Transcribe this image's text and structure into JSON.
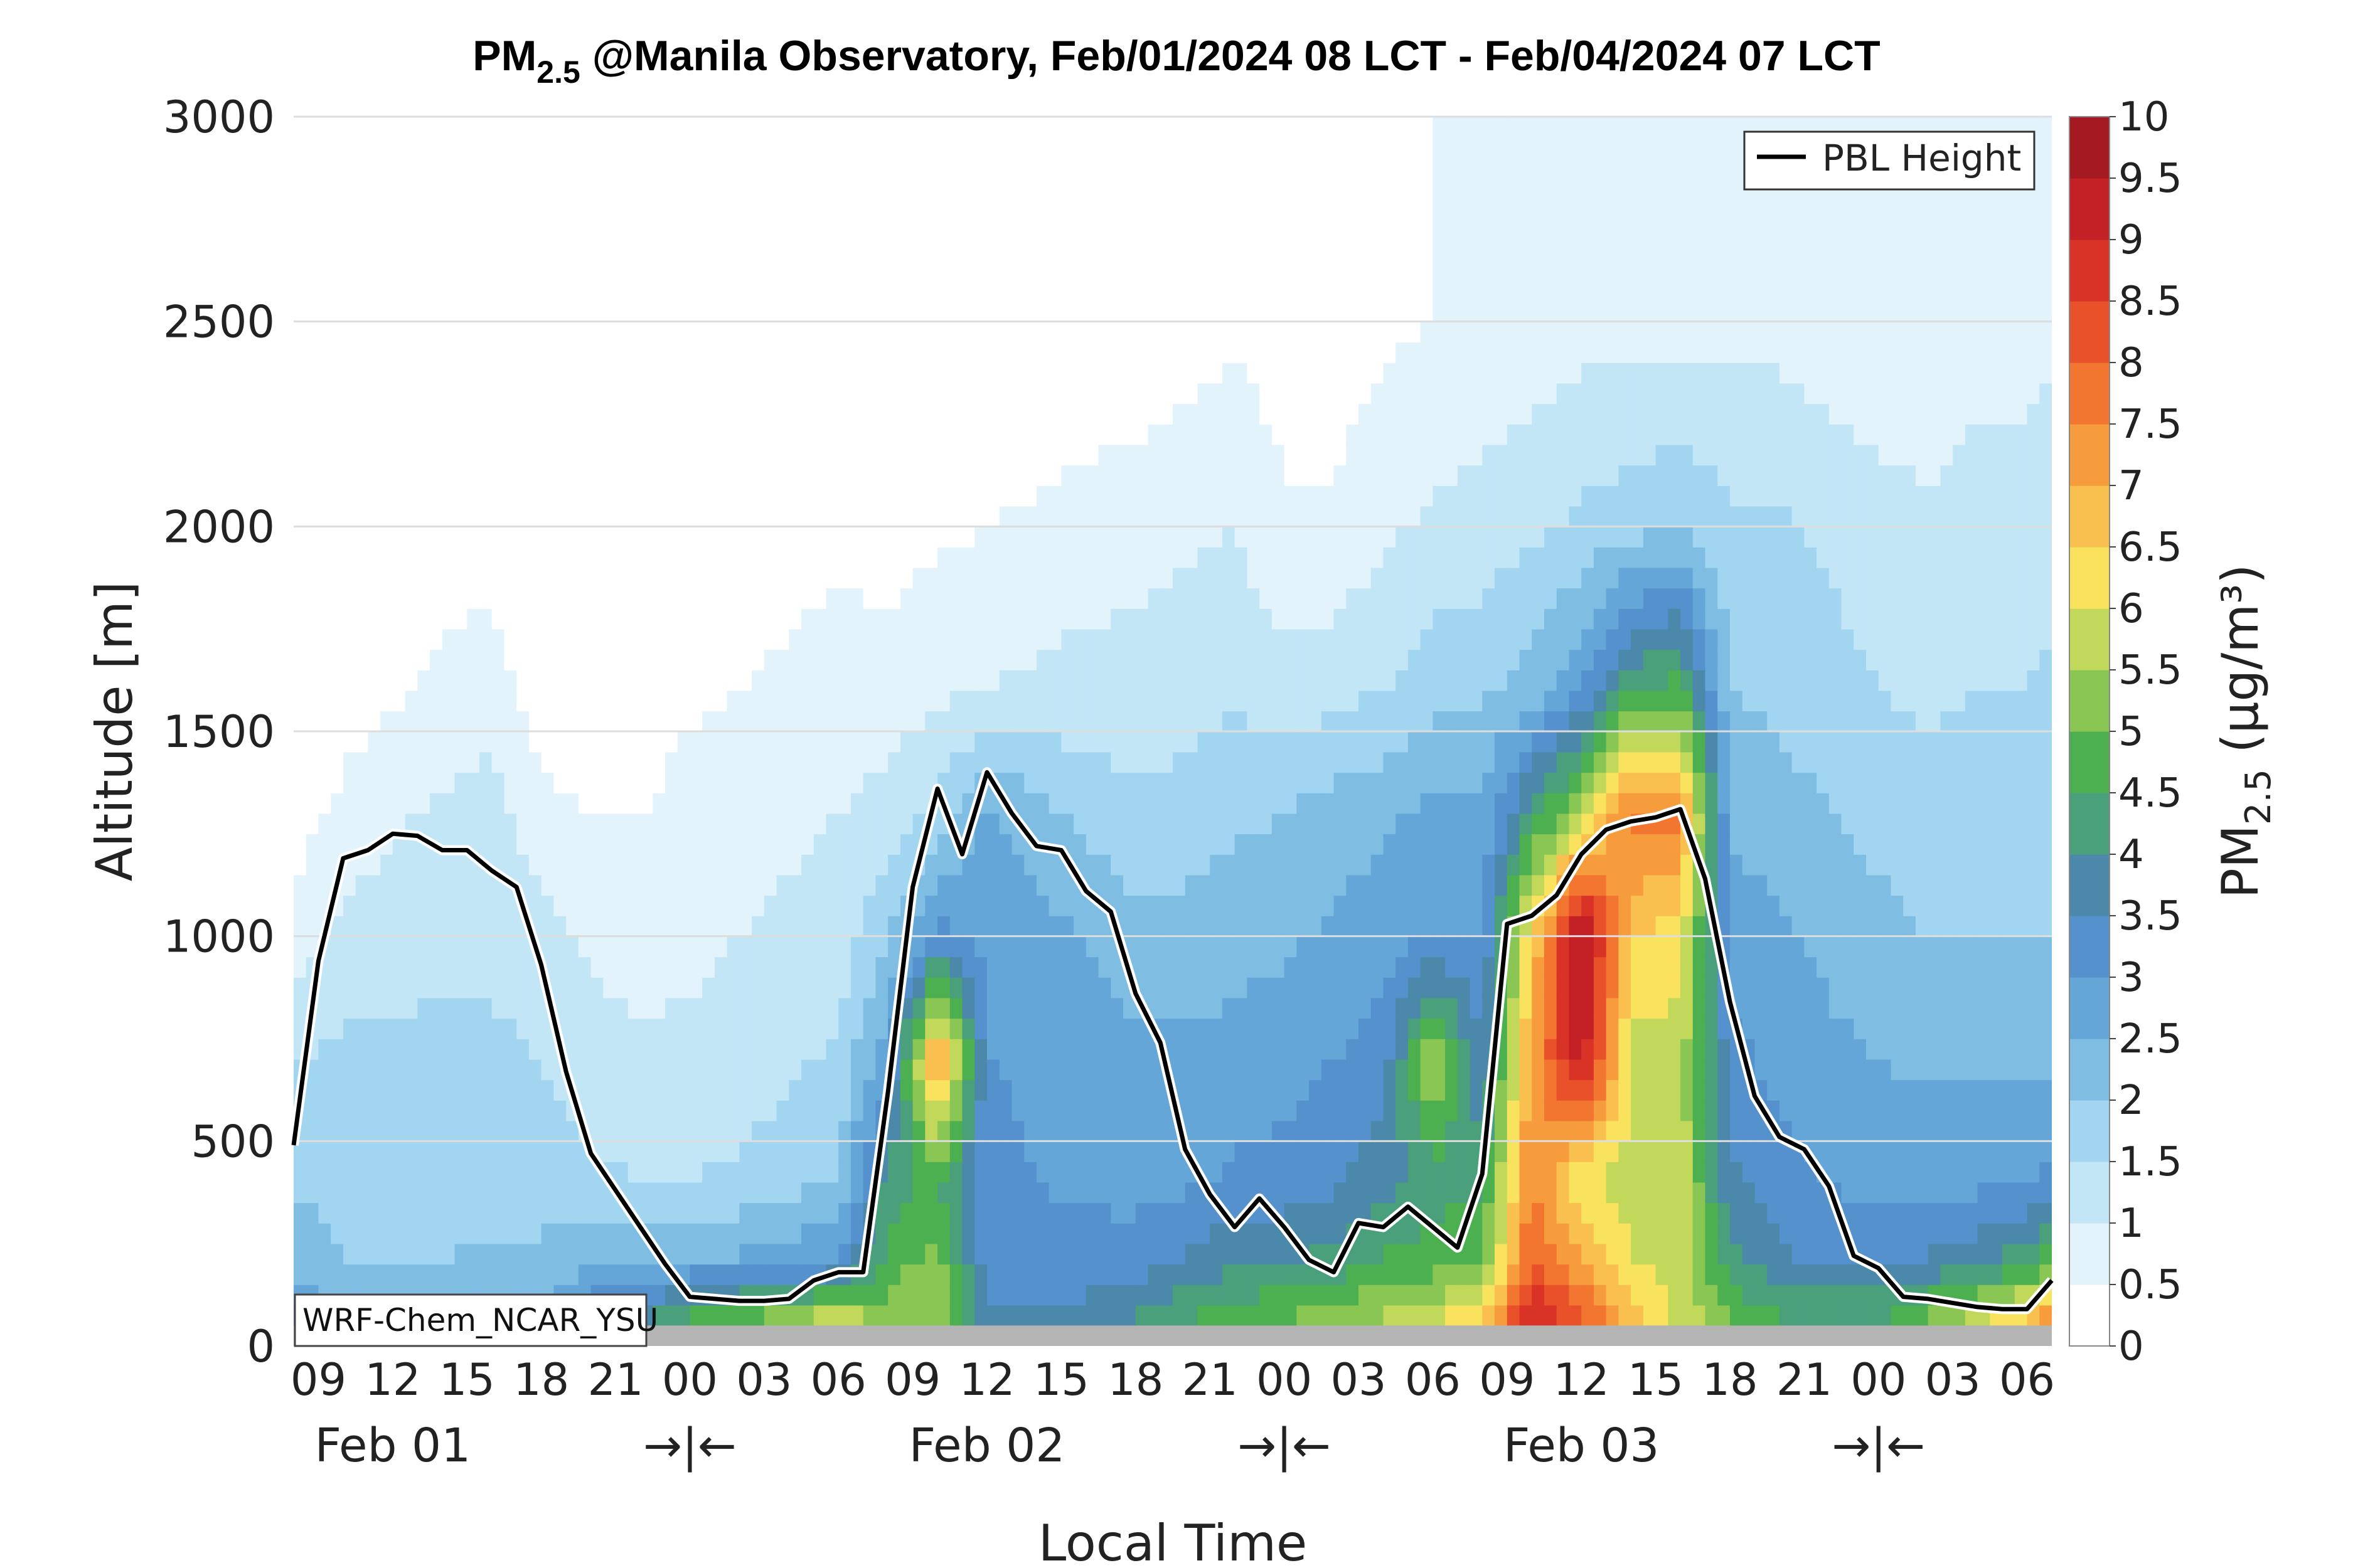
{
  "chart_data": {
    "type": "area",
    "title": {
      "prefix": "PM",
      "subscript": "2.5",
      "suffix": " @Manila Observatory, Feb/01/2024 08 LCT - Feb/04/2024 07 LCT"
    },
    "xlabel": "Local Time",
    "ylabel": "Altitude [m]",
    "ylim": [
      0,
      3000
    ],
    "y_ticks": [
      0,
      500,
      1000,
      1500,
      2000,
      2500,
      3000
    ],
    "x_hours_start": 8,
    "x_range_hours": [
      8,
      79
    ],
    "x_tick_hours": [
      9,
      12,
      15,
      18,
      21,
      24,
      27,
      30,
      33,
      36,
      39,
      42,
      45,
      48,
      51,
      54,
      57,
      60,
      63,
      66,
      69,
      72,
      75,
      78
    ],
    "x_tick_labels": [
      "09",
      "12",
      "15",
      "18",
      "21",
      "00",
      "03",
      "06",
      "09",
      "12",
      "15",
      "18",
      "21",
      "00",
      "03",
      "06",
      "09",
      "12",
      "15",
      "18",
      "21",
      "00",
      "03",
      "06"
    ],
    "day_labels": [
      {
        "text": "Feb 01",
        "hour": 12
      },
      {
        "text": "→|←",
        "hour": 24
      },
      {
        "text": "Feb 02",
        "hour": 36
      },
      {
        "text": "→|←",
        "hour": 48
      },
      {
        "text": "Feb 03",
        "hour": 60
      },
      {
        "text": "→|←",
        "hour": 72
      }
    ],
    "grid": "horizontal dotted",
    "colorbar": {
      "label_prefix": "PM",
      "label_subscript": "2.5",
      "label_unit": " (μg/m³)",
      "levels": [
        0,
        0.5,
        1,
        1.5,
        2,
        2.5,
        3,
        3.5,
        4,
        4.5,
        5,
        5.5,
        6,
        6.5,
        7,
        7.5,
        8,
        8.5,
        9,
        9.5,
        10
      ],
      "tick_labels": [
        "0",
        "0.5",
        "1",
        "1.5",
        "2",
        "2.5",
        "3",
        "3.5",
        "4",
        "4.5",
        "5",
        "5.5",
        "6",
        "6.5",
        "7",
        "7.5",
        "8",
        "8.5",
        "9",
        "9.5",
        "10"
      ],
      "colors": [
        "#ffffff",
        "#e2f3fb",
        "#c3e6f7",
        "#a2d6f0",
        "#7fbde3",
        "#64a6d8",
        "#5591cc",
        "#4b88aa",
        "#4ba07c",
        "#4cb050",
        "#89c653",
        "#c2d85a",
        "#f9e35e",
        "#f9c04f",
        "#f79c3d",
        "#f27530",
        "#e8512a",
        "#d93328",
        "#c32126",
        "#a51a22",
        "#841518"
      ]
    },
    "legend": {
      "label": "PBL Height",
      "placement": "top-right"
    },
    "annotation": "WRF-Chem_NCAR_YSU",
    "ground_level_m": 50,
    "pbl_height": {
      "hours": [
        8,
        9,
        10,
        11,
        12,
        13,
        14,
        15,
        16,
        17,
        18,
        19,
        20,
        21,
        22,
        23,
        24,
        25,
        26,
        27,
        28,
        29,
        30,
        31,
        32,
        33,
        34,
        35,
        36,
        37,
        38,
        39,
        40,
        41,
        42,
        43,
        44,
        45,
        46,
        47,
        48,
        49,
        50,
        51,
        52,
        53,
        54,
        55,
        56,
        57,
        58,
        59,
        60,
        61,
        62,
        63,
        64,
        65,
        66,
        67,
        68,
        69,
        70,
        71,
        72,
        73,
        74,
        75,
        76,
        77,
        78,
        79
      ],
      "values": [
        490,
        940,
        1190,
        1210,
        1250,
        1245,
        1210,
        1210,
        1160,
        1120,
        930,
        670,
        470,
        380,
        290,
        200,
        120,
        115,
        110,
        110,
        115,
        160,
        180,
        180,
        620,
        1120,
        1360,
        1200,
        1400,
        1300,
        1220,
        1210,
        1110,
        1060,
        860,
        740,
        480,
        370,
        290,
        360,
        290,
        210,
        180,
        300,
        290,
        340,
        290,
        240,
        420,
        1030,
        1050,
        1100,
        1200,
        1260,
        1280,
        1290,
        1310,
        1140,
        840,
        610,
        510,
        480,
        390,
        220,
        190,
        120,
        115,
        105,
        95,
        90,
        90,
        160
      ]
    },
    "concentration_field": {
      "description_of_levels_m": [
        0,
        100,
        200,
        400,
        700,
        1000,
        1300,
        1600,
        2000,
        2500
      ],
      "hours": [
        8,
        10,
        12,
        14,
        16,
        18,
        20,
        22,
        24,
        26,
        28,
        30,
        32,
        34,
        36,
        38,
        40,
        42,
        44,
        46,
        48,
        50,
        52,
        54,
        56,
        58,
        60,
        62,
        64,
        66,
        68,
        70,
        72,
        74,
        76,
        78,
        79
      ],
      "profiles_ug_m3": [
        [
          4.0,
          3.0,
          2.2,
          2.0,
          1.5,
          0.6,
          0.3,
          0.2,
          0.5,
          0.3
        ],
        [
          2.0,
          2.0,
          2.0,
          1.8,
          1.6,
          1.2,
          0.6,
          0.3,
          0.5,
          0.3
        ],
        [
          2.2,
          2.0,
          2.0,
          1.9,
          1.6,
          1.3,
          0.9,
          0.4,
          0.2,
          0.0
        ],
        [
          2.2,
          2.0,
          2.0,
          1.8,
          1.6,
          1.4,
          1.1,
          0.6,
          0.3,
          0.0
        ],
        [
          2.3,
          2.2,
          2.1,
          1.8,
          1.6,
          1.4,
          1.3,
          0.7,
          0.3,
          0.0
        ],
        [
          2.6,
          2.4,
          2.1,
          1.8,
          1.5,
          1.2,
          0.6,
          0.3,
          0.0,
          0.0
        ],
        [
          3.8,
          3.2,
          2.5,
          1.6,
          1.2,
          0.9,
          0.5,
          0.2,
          0.0,
          0.0
        ],
        [
          4.8,
          3.5,
          2.3,
          1.5,
          1.1,
          0.8,
          0.5,
          0.2,
          0.0,
          0.0
        ],
        [
          5.4,
          4.2,
          2.6,
          1.5,
          1.1,
          0.9,
          0.7,
          0.4,
          0.1,
          0.0
        ],
        [
          5.8,
          4.5,
          2.6,
          1.6,
          1.2,
          1.0,
          0.8,
          0.5,
          0.2,
          0.0
        ],
        [
          6.2,
          4.8,
          2.8,
          1.8,
          1.4,
          1.1,
          0.9,
          0.6,
          0.3,
          0.0
        ],
        [
          7.8,
          5.4,
          3.0,
          2.0,
          1.6,
          1.2,
          1.0,
          0.7,
          0.4,
          0.0
        ],
        [
          5.5,
          5.0,
          4.8,
          4.2,
          2.8,
          2.0,
          1.2,
          0.7,
          0.3,
          0.0
        ],
        [
          5.4,
          5.5,
          5.2,
          4.6,
          7.5,
          3.2,
          1.6,
          0.9,
          0.4,
          0.0
        ],
        [
          4.2,
          3.4,
          3.2,
          3.2,
          3.0,
          2.9,
          2.6,
          1.0,
          0.5,
          0.0
        ],
        [
          4.0,
          3.4,
          3.2,
          3.0,
          2.9,
          2.7,
          2.2,
          1.1,
          0.6,
          0.0
        ],
        [
          4.2,
          3.6,
          3.2,
          2.9,
          2.7,
          2.5,
          1.8,
          1.2,
          0.7,
          0.1
        ],
        [
          4.6,
          3.8,
          3.3,
          2.8,
          2.6,
          2.2,
          1.6,
          1.2,
          0.8,
          0.1
        ],
        [
          5.0,
          4.2,
          3.6,
          2.9,
          2.6,
          2.2,
          1.7,
          1.3,
          0.9,
          0.2
        ],
        [
          5.2,
          4.6,
          3.9,
          3.1,
          2.7,
          2.3,
          1.9,
          1.4,
          1.0,
          0.4
        ],
        [
          5.3,
          4.8,
          4.0,
          3.2,
          2.8,
          2.4,
          2.0,
          1.2,
          0.6,
          0.2
        ],
        [
          5.6,
          5.0,
          4.2,
          3.4,
          3.0,
          2.6,
          2.2,
          1.3,
          0.6,
          0.2
        ],
        [
          6.0,
          5.3,
          4.6,
          3.8,
          3.2,
          2.8,
          2.4,
          1.5,
          0.9,
          0.4
        ],
        [
          6.4,
          5.6,
          4.8,
          4.2,
          5.6,
          3.0,
          2.6,
          1.8,
          1.1,
          0.5
        ],
        [
          7.5,
          6.2,
          5.0,
          4.4,
          3.4,
          3.0,
          2.6,
          1.9,
          1.2,
          0.6
        ],
        [
          9.5,
          8.8,
          8.2,
          7.6,
          7.2,
          6.5,
          4.2,
          2.2,
          1.4,
          0.7
        ],
        [
          8.6,
          8.0,
          7.0,
          6.0,
          9.4,
          9.8,
          5.6,
          3.0,
          1.6,
          0.8
        ],
        [
          7.2,
          6.6,
          6.0,
          5.8,
          5.8,
          6.6,
          7.8,
          4.4,
          1.8,
          0.8
        ],
        [
          6.0,
          5.8,
          5.8,
          5.8,
          5.8,
          6.2,
          7.6,
          4.8,
          2.0,
          0.8
        ],
        [
          5.4,
          4.8,
          4.2,
          3.6,
          3.2,
          2.8,
          2.4,
          2.0,
          1.6,
          0.8
        ],
        [
          4.6,
          4.4,
          3.6,
          3.2,
          2.8,
          2.6,
          2.2,
          1.9,
          1.6,
          0.8
        ],
        [
          4.4,
          4.2,
          3.4,
          3.0,
          2.6,
          2.4,
          2.0,
          1.7,
          1.4,
          0.7
        ],
        [
          4.6,
          4.2,
          3.4,
          2.8,
          2.5,
          2.2,
          1.8,
          1.5,
          1.2,
          0.6
        ],
        [
          5.4,
          4.8,
          3.6,
          2.8,
          2.4,
          2.0,
          1.7,
          1.4,
          1.1,
          0.6
        ],
        [
          6.6,
          5.4,
          3.8,
          2.9,
          2.4,
          2.0,
          1.8,
          1.5,
          1.2,
          0.8
        ],
        [
          7.6,
          6.2,
          4.4,
          3.0,
          2.4,
          2.0,
          1.8,
          1.5,
          1.2,
          0.8
        ],
        [
          8.2,
          6.8,
          4.8,
          3.2,
          2.4,
          2.0,
          1.8,
          1.6,
          1.3,
          0.9
        ]
      ]
    }
  }
}
